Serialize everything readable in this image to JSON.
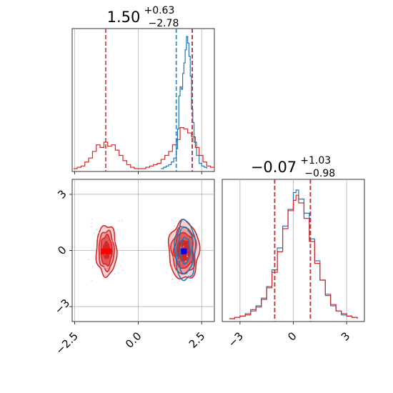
{
  "chart_data": {
    "type": "corner",
    "colors": {
      "series_a": "#1f77b4",
      "series_b": "#d62728",
      "grid": "#b0b0b0",
      "marker_a": "#0000ff",
      "marker_b": "#ff0000"
    },
    "grid": true,
    "parameters": [
      {
        "title_value": "1.50",
        "title_plus": "+0.63",
        "title_minus": "−2.78"
      },
      {
        "title_value": "−0.07",
        "title_plus": "+1.03",
        "title_minus": "−0.98"
      }
    ],
    "x_range_p1": [
      -2.6,
      3.0
    ],
    "x_range_p2": [
      -4.0,
      4.0
    ],
    "y_range_p2": [
      -3.8,
      3.8
    ],
    "ticks_p1": [
      {
        "value": -2.5,
        "label": "−2.5"
      },
      {
        "value": 0.0,
        "label": "0.0"
      },
      {
        "value": 2.5,
        "label": "2.5"
      }
    ],
    "ticks_p2": [
      {
        "value": -3,
        "label": "−3"
      },
      {
        "value": 0,
        "label": "0"
      },
      {
        "value": 3,
        "label": "3"
      }
    ],
    "quantiles": {
      "p1_series_a": [
        1.5,
        2.13
      ],
      "p1_series_b": [
        -1.28,
        2.13
      ],
      "p2_series_a": [
        -1.05,
        0.96
      ],
      "p2_series_b": [
        -1.05,
        0.96
      ]
    },
    "marginal_p1": {
      "series_a": [
        [
          0.9,
          0.0
        ],
        [
          1.0,
          0.01
        ],
        [
          1.1,
          0.02
        ],
        [
          1.2,
          0.03
        ],
        [
          1.3,
          0.05
        ],
        [
          1.4,
          0.08
        ],
        [
          1.5,
          0.15
        ],
        [
          1.55,
          0.3
        ],
        [
          1.6,
          0.55
        ],
        [
          1.65,
          0.62
        ],
        [
          1.7,
          0.6
        ],
        [
          1.75,
          0.72
        ],
        [
          1.8,
          0.8
        ],
        [
          1.85,
          0.9
        ],
        [
          1.9,
          1.0
        ],
        [
          1.95,
          0.95
        ],
        [
          2.0,
          0.85
        ],
        [
          2.05,
          0.7
        ],
        [
          2.1,
          0.45
        ],
        [
          2.15,
          0.35
        ],
        [
          2.2,
          0.2
        ],
        [
          2.3,
          0.1
        ],
        [
          2.4,
          0.04
        ],
        [
          2.5,
          0.02
        ],
        [
          2.6,
          0.01
        ],
        [
          2.7,
          0.0
        ]
      ],
      "series_b": [
        [
          -2.55,
          0.0
        ],
        [
          -2.4,
          0.01
        ],
        [
          -2.25,
          0.02
        ],
        [
          -2.1,
          0.05
        ],
        [
          -1.95,
          0.08
        ],
        [
          -1.8,
          0.13
        ],
        [
          -1.65,
          0.18
        ],
        [
          -1.5,
          0.16
        ],
        [
          -1.35,
          0.2
        ],
        [
          -1.2,
          0.17
        ],
        [
          -1.05,
          0.18
        ],
        [
          -0.9,
          0.14
        ],
        [
          -0.75,
          0.1
        ],
        [
          -0.6,
          0.06
        ],
        [
          -0.45,
          0.03
        ],
        [
          -0.3,
          0.01
        ],
        [
          -0.15,
          0.0
        ],
        [
          0.0,
          0.0
        ],
        [
          0.15,
          0.0
        ],
        [
          0.3,
          0.01
        ],
        [
          0.45,
          0.02
        ],
        [
          0.6,
          0.03
        ],
        [
          0.75,
          0.04
        ],
        [
          0.9,
          0.07
        ],
        [
          1.05,
          0.1
        ],
        [
          1.2,
          0.13
        ],
        [
          1.35,
          0.18
        ],
        [
          1.5,
          0.22
        ],
        [
          1.65,
          0.31
        ],
        [
          1.8,
          0.3
        ],
        [
          1.95,
          0.27
        ],
        [
          2.1,
          0.24
        ],
        [
          2.25,
          0.16
        ],
        [
          2.4,
          0.1
        ],
        [
          2.55,
          0.05
        ],
        [
          2.7,
          0.02
        ],
        [
          2.85,
          0.01
        ],
        [
          3.0,
          0.0
        ]
      ]
    },
    "marginal_p2": {
      "series_a": [
        [
          -3.6,
          0.0
        ],
        [
          -3.3,
          0.01
        ],
        [
          -3.0,
          0.02
        ],
        [
          -2.7,
          0.04
        ],
        [
          -2.4,
          0.07
        ],
        [
          -2.1,
          0.1
        ],
        [
          -1.8,
          0.16
        ],
        [
          -1.5,
          0.25
        ],
        [
          -1.2,
          0.38
        ],
        [
          -0.9,
          0.55
        ],
        [
          -0.6,
          0.72
        ],
        [
          -0.3,
          0.85
        ],
        [
          0.0,
          0.98
        ],
        [
          0.15,
          1.0
        ],
        [
          0.3,
          0.93
        ],
        [
          0.6,
          0.82
        ],
        [
          0.9,
          0.62
        ],
        [
          1.2,
          0.45
        ],
        [
          1.5,
          0.3
        ],
        [
          1.8,
          0.18
        ],
        [
          2.1,
          0.1
        ],
        [
          2.4,
          0.06
        ],
        [
          2.7,
          0.03
        ],
        [
          3.0,
          0.02
        ],
        [
          3.3,
          0.01
        ],
        [
          3.6,
          0.0
        ]
      ],
      "series_b": [
        [
          -3.6,
          0.0
        ],
        [
          -3.3,
          0.01
        ],
        [
          -3.0,
          0.02
        ],
        [
          -2.7,
          0.03
        ],
        [
          -2.4,
          0.06
        ],
        [
          -2.1,
          0.09
        ],
        [
          -1.8,
          0.15
        ],
        [
          -1.5,
          0.24
        ],
        [
          -1.2,
          0.36
        ],
        [
          -0.9,
          0.52
        ],
        [
          -0.6,
          0.7
        ],
        [
          -0.3,
          0.84
        ],
        [
          0.0,
          0.92
        ],
        [
          0.15,
          0.96
        ],
        [
          0.3,
          0.9
        ],
        [
          0.6,
          0.78
        ],
        [
          0.9,
          0.6
        ],
        [
          1.2,
          0.43
        ],
        [
          1.5,
          0.3
        ],
        [
          1.8,
          0.19
        ],
        [
          2.1,
          0.11
        ],
        [
          2.4,
          0.06
        ],
        [
          2.7,
          0.04
        ],
        [
          3.0,
          0.02
        ],
        [
          3.3,
          0.01
        ],
        [
          3.6,
          0.0
        ]
      ]
    },
    "joint": {
      "modes_series_b": [
        {
          "x": -1.25,
          "y": 0.0,
          "levels": [
            [
              0.4,
              1.35
            ],
            [
              0.3,
              1.05
            ],
            [
              0.22,
              0.8
            ],
            [
              0.12,
              0.45
            ]
          ]
        },
        {
          "x": 1.8,
          "y": 0.0,
          "levels": [
            [
              0.6,
              1.55
            ],
            [
              0.48,
              1.25
            ],
            [
              0.38,
              0.95
            ],
            [
              0.25,
              0.55
            ]
          ]
        }
      ],
      "modes_series_a": [
        {
          "x": 1.85,
          "y": 0.0,
          "levels": [
            [
              0.4,
              1.6
            ],
            [
              0.3,
              1.25
            ],
            [
              0.18,
              0.7
            ]
          ]
        }
      ],
      "marker_points": [
        {
          "series": "b",
          "x": -1.35,
          "y": -0.05
        },
        {
          "series": "b",
          "x": -1.15,
          "y": -0.05
        },
        {
          "series": "a",
          "x": 1.8,
          "y": -0.05
        }
      ]
    }
  }
}
